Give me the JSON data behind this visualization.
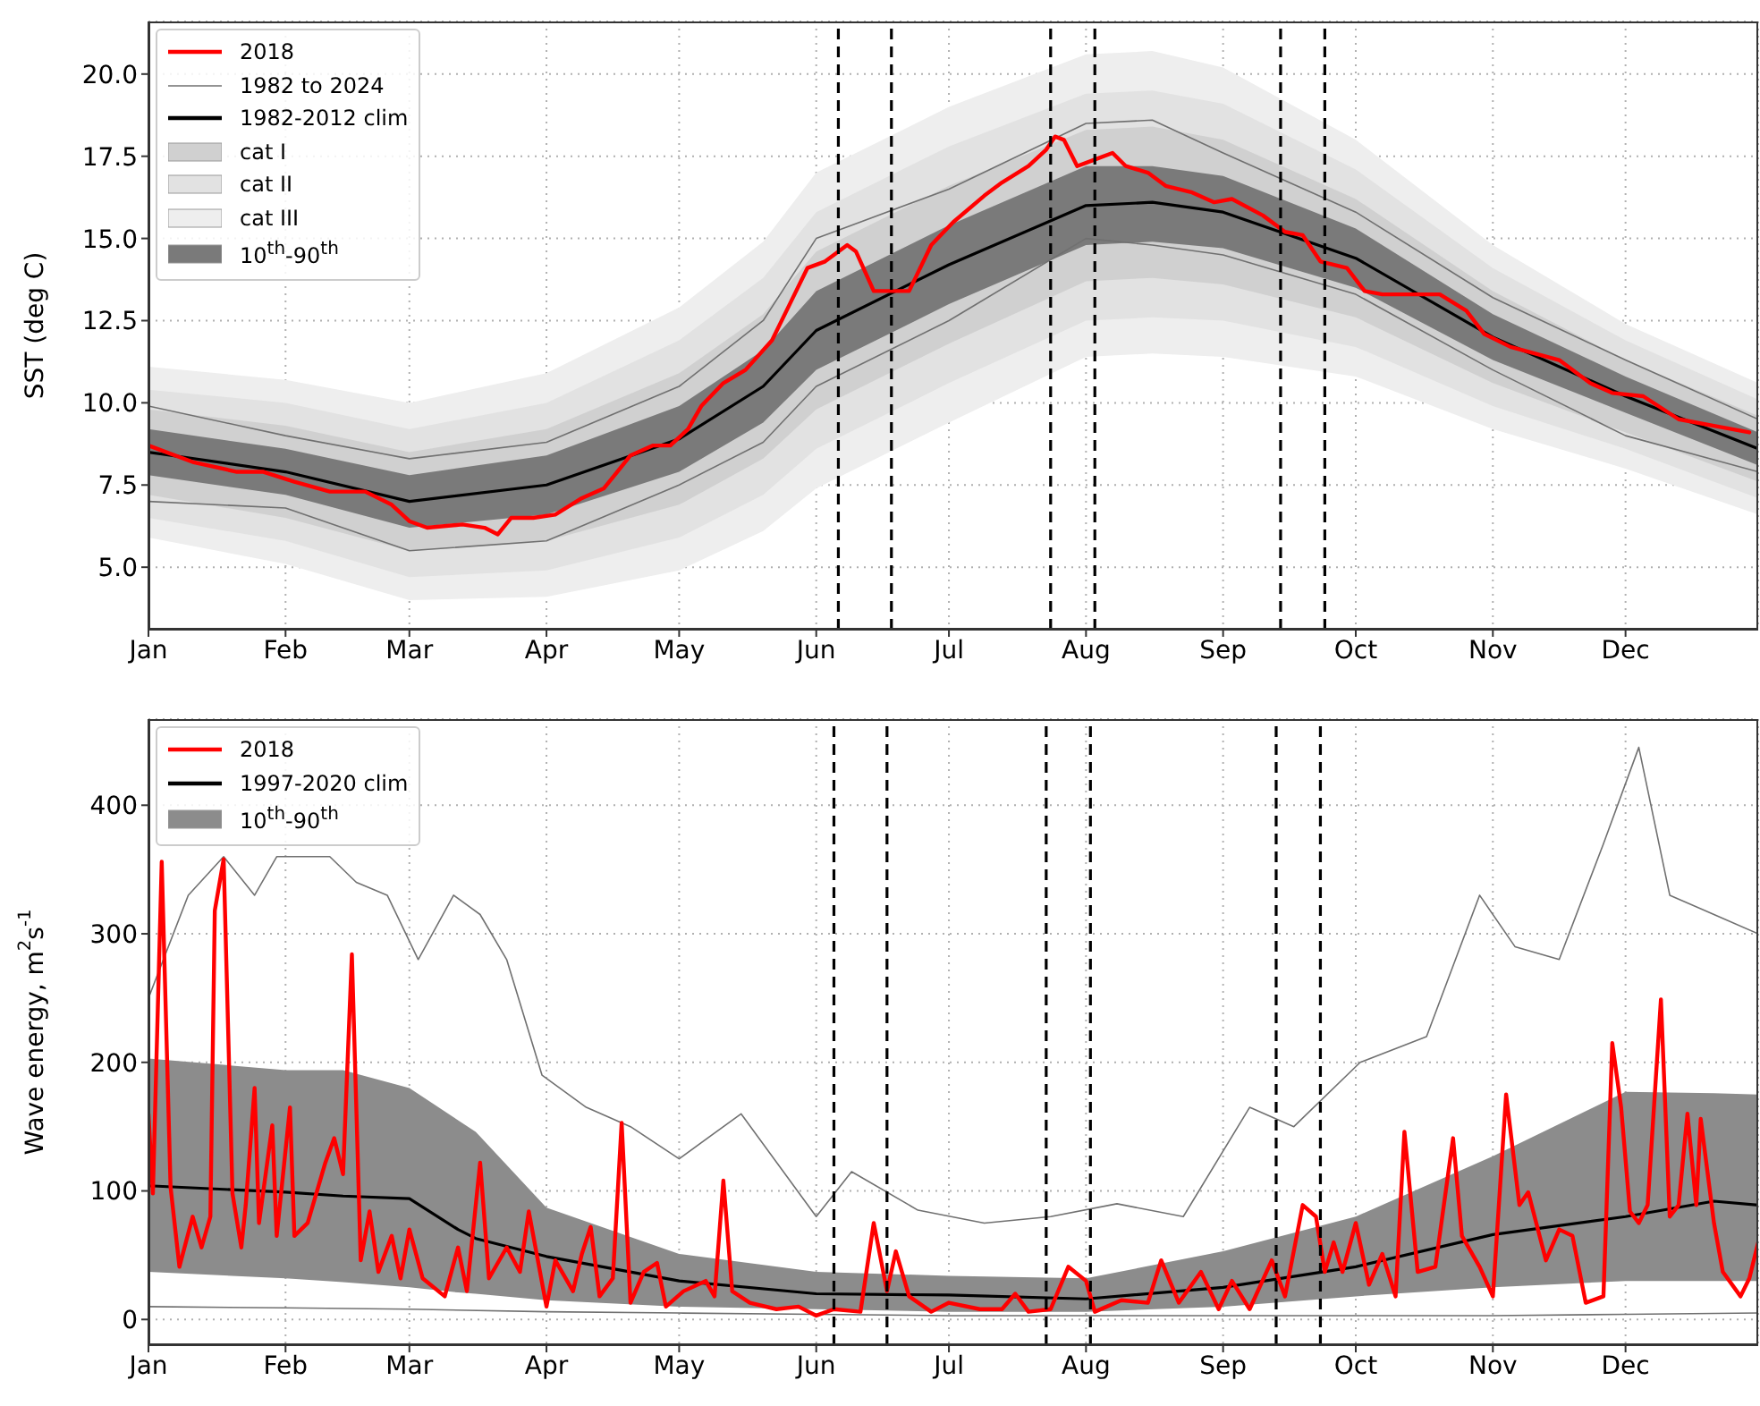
{
  "chart_data": [
    {
      "type": "line",
      "ylabel": "SST (deg C)",
      "xlim": [
        "--01-01",
        "--12-31"
      ],
      "ylim": [
        3.1,
        21.6
      ],
      "xticks": [
        {
          "value": "--01-01",
          "label": "Jan"
        },
        {
          "value": "--02-01",
          "label": "Feb"
        },
        {
          "value": "--03-01",
          "label": "Mar"
        },
        {
          "value": "--04-01",
          "label": "Apr"
        },
        {
          "value": "--05-01",
          "label": "May"
        },
        {
          "value": "--06-01",
          "label": "Jun"
        },
        {
          "value": "--07-01",
          "label": "Jul"
        },
        {
          "value": "--08-01",
          "label": "Aug"
        },
        {
          "value": "--09-01",
          "label": "Sep"
        },
        {
          "value": "--10-01",
          "label": "Oct"
        },
        {
          "value": "--11-01",
          "label": "Nov"
        },
        {
          "value": "--12-01",
          "label": "Dec"
        }
      ],
      "yticks": [
        {
          "value": 5,
          "label": "5.0"
        },
        {
          "value": 7.5,
          "label": "7.5"
        },
        {
          "value": 10,
          "label": "10.0"
        },
        {
          "value": 12.5,
          "label": "12.5"
        },
        {
          "value": 15,
          "label": "15.0"
        },
        {
          "value": 17.5,
          "label": "17.5"
        },
        {
          "value": 20,
          "label": "20.0"
        }
      ],
      "grid": true,
      "legend": "top left",
      "ref_lines": [
        {
          "axis": "x",
          "value": "--06-06",
          "color": "#000000",
          "line_style": "dashed"
        },
        {
          "axis": "x",
          "value": "--06-18",
          "color": "#000000",
          "line_style": "dashed"
        },
        {
          "axis": "x",
          "value": "--07-24",
          "color": "#000000",
          "line_style": "dashed"
        },
        {
          "axis": "x",
          "value": "--08-03",
          "color": "#000000",
          "line_style": "dashed"
        },
        {
          "axis": "x",
          "value": "--09-14",
          "color": "#000000",
          "line_style": "dashed"
        },
        {
          "axis": "x",
          "value": "--09-24",
          "color": "#000000",
          "line_style": "dashed"
        }
      ],
      "series": [
        {
          "name": "2018",
          "color": "#ff0000",
          "x": [
            "--01-01",
            "--01-11",
            "--01-21",
            "--01-27",
            "--02-03",
            "--02-11",
            "--02-19",
            "--02-25",
            "--03-01",
            "--03-05",
            "--03-13",
            "--03-18",
            "--03-21",
            "--03-24",
            "--03-29",
            "--04-03",
            "--04-09",
            "--04-14",
            "--04-17",
            "--04-20",
            "--04-25",
            "--04-29",
            "--05-03",
            "--05-06",
            "--05-11",
            "--05-16",
            "--05-22",
            "--05-26",
            "--05-30",
            "--06-03",
            "--06-08",
            "--06-10",
            "--06-14",
            "--06-22",
            "--06-27",
            "--07-02",
            "--07-09",
            "--07-13",
            "--07-19",
            "--07-23",
            "--07-25",
            "--07-27",
            "--07-30",
            "--08-03",
            "--08-07",
            "--08-10",
            "--08-15",
            "--08-19",
            "--08-25",
            "--08-30",
            "--09-03",
            "--09-10",
            "--09-15",
            "--09-19",
            "--09-23",
            "--09-29",
            "--10-03",
            "--10-07",
            "--10-12",
            "--10-20",
            "--10-26",
            "--10-30",
            "--11-05",
            "--11-16",
            "--11-23",
            "--11-28",
            "--12-05",
            "--12-13",
            "--12-21",
            "--12-29"
          ],
          "values": [
            8.7,
            8.2,
            7.9,
            7.9,
            7.6,
            7.3,
            7.3,
            6.9,
            6.4,
            6.2,
            6.3,
            6.2,
            6.0,
            6.5,
            6.5,
            6.6,
            7.1,
            7.4,
            7.9,
            8.4,
            8.7,
            8.7,
            9.2,
            9.9,
            10.6,
            11.0,
            11.9,
            13.0,
            14.1,
            14.3,
            14.8,
            14.6,
            13.4,
            13.4,
            14.8,
            15.5,
            16.3,
            16.7,
            17.2,
            17.7,
            18.1,
            18.0,
            17.2,
            17.4,
            17.6,
            17.2,
            17.0,
            16.6,
            16.4,
            16.1,
            16.2,
            15.7,
            15.2,
            15.1,
            14.3,
            14.1,
            13.4,
            13.3,
            13.3,
            13.3,
            12.8,
            12.1,
            11.7,
            11.3,
            10.6,
            10.3,
            10.2,
            9.5,
            9.3,
            9.1
          ]
        },
        {
          "name": "1982 to 2024",
          "color": "#707070",
          "x": [
            "--01-01",
            "--02-01",
            "--03-01",
            "--04-01",
            "--05-01",
            "--05-20",
            "--06-01",
            "--07-01",
            "--08-01",
            "--08-16",
            "--09-01",
            "--10-01",
            "--11-01",
            "--12-01",
            "--12-31"
          ],
          "values": [
            9.9,
            9.0,
            8.3,
            8.8,
            10.5,
            12.5,
            15.0,
            16.5,
            18.5,
            18.6,
            17.6,
            15.8,
            13.2,
            11.3,
            9.5
          ]
        },
        {
          "color": "#707070",
          "x": [
            "--01-01",
            "--02-01",
            "--03-01",
            "--04-01",
            "--05-01",
            "--05-20",
            "--06-01",
            "--07-01",
            "--08-01",
            "--08-16",
            "--09-01",
            "--10-01",
            "--11-01",
            "--12-01",
            "--12-31"
          ],
          "values": [
            7.0,
            6.8,
            5.5,
            5.8,
            7.5,
            8.8,
            10.5,
            12.5,
            15.0,
            14.8,
            14.5,
            13.3,
            11.0,
            9.0,
            7.9
          ]
        },
        {
          "name": "1982-2012 clim",
          "color": "#000000",
          "x": [
            "--01-01",
            "--02-01",
            "--03-01",
            "--04-01",
            "--05-01",
            "--05-20",
            "--06-01",
            "--07-01",
            "--08-01",
            "--08-16",
            "--09-01",
            "--10-01",
            "--11-01",
            "--12-01",
            "--12-31"
          ],
          "values": [
            8.5,
            7.9,
            7.0,
            7.5,
            8.9,
            10.5,
            12.2,
            14.2,
            16.0,
            16.1,
            15.8,
            14.4,
            12.0,
            10.2,
            8.6
          ]
        },
        {
          "name": "cat I",
          "color": "#d0d0d0",
          "x": [
            "--01-01",
            "--02-01",
            "--03-01",
            "--04-01",
            "--05-01",
            "--05-20",
            "--06-01",
            "--07-01",
            "--08-01",
            "--08-16",
            "--09-01",
            "--10-01",
            "--11-01",
            "--12-01",
            "--12-31"
          ],
          "values": [
            null,
            null,
            null,
            null,
            null,
            null,
            null,
            null,
            null,
            null,
            null,
            null,
            null,
            null,
            null
          ],
          "upper": [
            9.8,
            9.3,
            8.5,
            9.2,
            10.9,
            12.7,
            14.6,
            16.6,
            18.3,
            18.4,
            18.0,
            16.2,
            13.4,
            11.3,
            9.6
          ],
          "lower": [
            7.2,
            6.5,
            5.5,
            5.8,
            6.9,
            8.3,
            9.8,
            11.8,
            13.7,
            13.8,
            13.6,
            12.6,
            10.6,
            9.1,
            7.6
          ]
        },
        {
          "name": "cat II",
          "color": "#e2e2e2",
          "x": [
            "--01-01",
            "--02-01",
            "--03-01",
            "--04-01",
            "--05-01",
            "--05-20",
            "--06-01",
            "--07-01",
            "--08-01",
            "--08-16",
            "--09-01",
            "--10-01",
            "--11-01",
            "--12-01",
            "--12-31"
          ],
          "values": [
            null,
            null,
            null,
            null,
            null,
            null,
            null,
            null,
            null,
            null,
            null,
            null,
            null,
            null,
            null
          ],
          "upper": [
            10.4,
            10.0,
            9.2,
            10.0,
            11.9,
            13.8,
            15.8,
            17.8,
            19.4,
            19.5,
            19.1,
            17.1,
            14.1,
            11.9,
            10.1
          ],
          "lower": [
            6.5,
            5.8,
            4.7,
            4.9,
            5.9,
            7.2,
            8.6,
            10.6,
            12.5,
            12.6,
            12.5,
            11.7,
            9.9,
            8.6,
            7.1
          ]
        },
        {
          "name": "cat III",
          "color": "#eeeeee",
          "x": [
            "--01-01",
            "--02-01",
            "--03-01",
            "--04-01",
            "--05-01",
            "--05-20",
            "--06-01",
            "--07-01",
            "--08-01",
            "--08-16",
            "--09-01",
            "--10-01",
            "--11-01",
            "--12-01",
            "--12-31"
          ],
          "values": [
            null,
            null,
            null,
            null,
            null,
            null,
            null,
            null,
            null,
            null,
            null,
            null,
            null,
            null,
            null
          ],
          "upper": [
            11.1,
            10.7,
            10.0,
            10.9,
            12.9,
            14.9,
            17.0,
            19.0,
            20.6,
            20.7,
            20.2,
            18.0,
            14.8,
            12.4,
            10.6
          ],
          "lower": [
            5.9,
            5.1,
            4.0,
            4.1,
            4.9,
            6.1,
            7.4,
            9.4,
            11.4,
            11.5,
            11.4,
            10.8,
            9.2,
            8.0,
            6.6
          ]
        },
        {
          "name": "10$^{th}$-90$^{th}$",
          "color": "#7a7a7a",
          "x": [
            "--01-01",
            "--02-01",
            "--03-01",
            "--04-01",
            "--05-01",
            "--05-20",
            "--06-01",
            "--07-01",
            "--08-01",
            "--08-16",
            "--09-01",
            "--10-01",
            "--11-01",
            "--12-01",
            "--12-31"
          ],
          "values": [
            null,
            null,
            null,
            null,
            null,
            null,
            null,
            null,
            null,
            null,
            null,
            null,
            null,
            null,
            null
          ],
          "upper": [
            9.2,
            8.6,
            7.8,
            8.4,
            9.9,
            11.6,
            13.4,
            15.4,
            17.2,
            17.2,
            16.9,
            15.3,
            12.7,
            10.8,
            9.1
          ],
          "lower": [
            7.8,
            7.2,
            6.2,
            6.6,
            7.9,
            9.4,
            11.0,
            13.0,
            14.8,
            14.9,
            14.7,
            13.5,
            11.3,
            9.7,
            8.1
          ]
        }
      ]
    },
    {
      "type": "line",
      "ylabel": "Wave energy, m$^{2}$s$^{-1}$",
      "xlim": [
        "--01-01",
        "--12-31"
      ],
      "ylim": [
        -20,
        467
      ],
      "xticks": [
        {
          "value": "--01-01",
          "label": "Jan"
        },
        {
          "value": "--02-01",
          "label": "Feb"
        },
        {
          "value": "--03-01",
          "label": "Mar"
        },
        {
          "value": "--04-01",
          "label": "Apr"
        },
        {
          "value": "--05-01",
          "label": "May"
        },
        {
          "value": "--06-01",
          "label": "Jun"
        },
        {
          "value": "--07-01",
          "label": "Jul"
        },
        {
          "value": "--08-01",
          "label": "Aug"
        },
        {
          "value": "--09-01",
          "label": "Sep"
        },
        {
          "value": "--10-01",
          "label": "Oct"
        },
        {
          "value": "--11-01",
          "label": "Nov"
        },
        {
          "value": "--12-01",
          "label": "Dec"
        }
      ],
      "yticks": [
        0,
        100,
        200,
        300,
        400
      ],
      "grid": true,
      "legend": "top left",
      "ref_lines": [
        {
          "axis": "x",
          "value": "--06-05",
          "color": "#000000",
          "line_style": "dashed"
        },
        {
          "axis": "x",
          "value": "--06-17",
          "color": "#000000",
          "line_style": "dashed"
        },
        {
          "axis": "x",
          "value": "--07-23",
          "color": "#000000",
          "line_style": "dashed"
        },
        {
          "axis": "x",
          "value": "--08-02",
          "color": "#000000",
          "line_style": "dashed"
        },
        {
          "axis": "x",
          "value": "--09-13",
          "color": "#000000",
          "line_style": "dashed"
        },
        {
          "axis": "x",
          "value": "--09-23",
          "color": "#000000",
          "line_style": "dashed"
        }
      ],
      "series": [
        {
          "name": "2018",
          "color": "#ff0000",
          "x": [
            "--01-01",
            "--01-02",
            "--01-04",
            "--01-06",
            "--01-08",
            "--01-11",
            "--01-13",
            "--01-15",
            "--01-16",
            "--01-18",
            "--01-20",
            "--01-22",
            "--01-23",
            "--01-25",
            "--01-26",
            "--01-29",
            "--01-30",
            "--02-02",
            "--02-03",
            "--02-06",
            "--02-10",
            "--02-12",
            "--02-14",
            "--02-16",
            "--02-18",
            "--02-20",
            "--02-22",
            "--02-25",
            "--02-27",
            "--03-01",
            "--03-04",
            "--03-09",
            "--03-12",
            "--03-14",
            "--03-17",
            "--03-19",
            "--03-23",
            "--03-26",
            "--03-28",
            "--04-01",
            "--04-03",
            "--04-07",
            "--04-09",
            "--04-11",
            "--04-13",
            "--04-16",
            "--04-18",
            "--04-20",
            "--04-23",
            "--04-26",
            "--04-28",
            "--05-02",
            "--05-07",
            "--05-09",
            "--05-11",
            "--05-13",
            "--05-17",
            "--05-23",
            "--05-28",
            "--06-01",
            "--06-05",
            "--06-11",
            "--06-14",
            "--06-17",
            "--06-19",
            "--06-22",
            "--06-27",
            "--07-01",
            "--07-08",
            "--07-13",
            "--07-16",
            "--07-19",
            "--07-24",
            "--07-28",
            "--08-01",
            "--08-03",
            "--08-09",
            "--08-15",
            "--08-18",
            "--08-22",
            "--08-27",
            "--08-31",
            "--09-03",
            "--09-07",
            "--09-12",
            "--09-15",
            "--09-19",
            "--09-22",
            "--09-24",
            "--09-26",
            "--09-28",
            "--10-01",
            "--10-04",
            "--10-07",
            "--10-10",
            "--10-12",
            "--10-15",
            "--10-19",
            "--10-23",
            "--10-25",
            "--10-29",
            "--11-01",
            "--11-04",
            "--11-07",
            "--11-09",
            "--11-13",
            "--11-16",
            "--11-19",
            "--11-22",
            "--11-26",
            "--11-28",
            "--11-30",
            "--12-02",
            "--12-04",
            "--12-06",
            "--12-09",
            "--12-11",
            "--12-13",
            "--12-15",
            "--12-17",
            "--12-18",
            "--12-21",
            "--12-23",
            "--12-27",
            "--12-29",
            "--12-31"
          ],
          "values": [
            160,
            98,
            356,
            103,
            41,
            80,
            56,
            80,
            318,
            358,
            98,
            56,
            89,
            180,
            75,
            151,
            65,
            165,
            65,
            75,
            122,
            141,
            113,
            284,
            46,
            84,
            37,
            65,
            32,
            70,
            32,
            18,
            56,
            22,
            122,
            32,
            56,
            37,
            84,
            10,
            46,
            22,
            51,
            72,
            18,
            32,
            153,
            13,
            37,
            44,
            10,
            22,
            30,
            18,
            108,
            22,
            13,
            8,
            10,
            3,
            8,
            6,
            75,
            22,
            53,
            18,
            6,
            13,
            8,
            8,
            20,
            6,
            8,
            41,
            30,
            6,
            15,
            13,
            46,
            13,
            37,
            8,
            30,
            8,
            46,
            18,
            89,
            80,
            37,
            60,
            37,
            75,
            27,
            51,
            18,
            146,
            37,
            41,
            141,
            65,
            41,
            18,
            175,
            89,
            99,
            46,
            70,
            65,
            13,
            18,
            215,
            165,
            84,
            75,
            89,
            249,
            80,
            89,
            160,
            89,
            156,
            75,
            37,
            18,
            32,
            60
          ]
        },
        {
          "name": "1997-2020 clim",
          "color": "#000000",
          "x": [
            "--01-01",
            "--02-01",
            "--02-14",
            "--03-01",
            "--03-12",
            "--03-16",
            "--04-01",
            "--05-01",
            "--06-01",
            "--07-01",
            "--08-01",
            "--09-01",
            "--10-01",
            "--11-01",
            "--12-01",
            "--12-21",
            "--12-31"
          ],
          "values": [
            104,
            99,
            96,
            94,
            70,
            63,
            49,
            30,
            20,
            19,
            16,
            25,
            41,
            66,
            80,
            92,
            89
          ]
        },
        {
          "color": "#707070",
          "x": [
            "--01-01",
            "--01-10",
            "--01-18",
            "--01-25",
            "--01-30",
            "--02-05",
            "--02-11",
            "--02-17",
            "--02-24",
            "--03-03",
            "--03-11",
            "--03-17",
            "--03-23",
            "--03-31",
            "--04-10",
            "--04-20",
            "--05-01",
            "--05-15",
            "--06-01",
            "--06-09",
            "--06-24",
            "--07-09",
            "--07-24",
            "--08-08",
            "--08-23",
            "--09-07",
            "--09-17",
            "--10-02",
            "--10-17",
            "--10-29",
            "--11-06",
            "--11-16",
            "--11-26",
            "--12-04",
            "--12-11",
            "--12-21",
            "--12-31"
          ],
          "values": [
            250,
            330,
            360,
            330,
            360,
            360,
            360,
            340,
            330,
            280,
            330,
            315,
            280,
            190,
            165,
            150,
            125,
            160,
            80,
            115,
            85,
            75,
            80,
            90,
            80,
            165,
            150,
            200,
            220,
            330,
            290,
            280,
            370,
            445,
            330,
            315,
            300
          ]
        },
        {
          "color": "#707070",
          "x": [
            "--01-01",
            "--02-01",
            "--03-01",
            "--04-01",
            "--05-01",
            "--06-01",
            "--07-01",
            "--08-01",
            "--09-01",
            "--10-01",
            "--11-01",
            "--12-01",
            "--12-31"
          ],
          "values": [
            10,
            9,
            8,
            6,
            5,
            4,
            3,
            3,
            3,
            3,
            3,
            4,
            5
          ]
        },
        {
          "name": "10$^{th}$-90$^{th}$",
          "color": "#8c8c8c",
          "x": [
            "--01-01",
            "--02-01",
            "--02-14",
            "--03-01",
            "--03-12",
            "--03-16",
            "--04-01",
            "--05-01",
            "--06-01",
            "--07-01",
            "--08-01",
            "--09-01",
            "--10-01",
            "--11-01",
            "--12-01",
            "--12-21",
            "--12-31"
          ],
          "values": [
            null,
            null,
            null,
            null,
            null,
            null,
            null,
            null,
            null,
            null,
            null,
            null,
            null,
            null,
            null,
            null,
            null
          ],
          "upper": [
            203,
            194,
            194,
            180,
            155,
            146,
            87,
            51,
            37,
            34,
            32,
            53,
            80,
            127,
            177,
            176,
            175
          ],
          "lower": [
            37,
            32,
            29,
            25,
            21,
            20,
            15,
            10,
            8,
            6,
            6,
            10,
            18,
            25,
            30,
            30,
            30
          ]
        }
      ]
    }
  ]
}
